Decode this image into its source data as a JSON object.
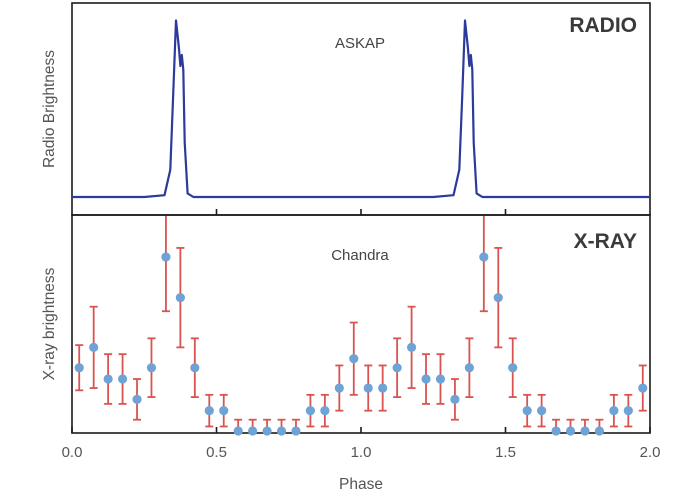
{
  "chart_data": [
    {
      "panel": "radio",
      "type": "line",
      "title": "RADIO",
      "instrument": "ASKAP",
      "ylabel": "Radio Brightness",
      "xlim": [
        0.0,
        2.0
      ],
      "ylim": [
        0,
        1
      ],
      "grid": false,
      "color": "#2b3a9b",
      "series": [
        {
          "x": [
            0.0,
            0.25,
            0.32,
            0.34,
            0.35,
            0.36,
            0.37,
            0.375,
            0.38,
            0.385,
            0.39,
            0.4,
            0.42,
            0.5,
            1.0,
            1.25,
            1.32,
            1.34,
            1.35,
            1.36,
            1.37,
            1.375,
            1.38,
            1.385,
            1.39,
            1.4,
            1.42,
            1.6,
            2.0
          ],
          "y": [
            0.0,
            0.0,
            0.01,
            0.15,
            0.55,
            0.97,
            0.82,
            0.72,
            0.78,
            0.7,
            0.3,
            0.02,
            0.0,
            0.0,
            0.0,
            0.0,
            0.01,
            0.15,
            0.55,
            0.97,
            0.82,
            0.72,
            0.78,
            0.7,
            0.3,
            0.02,
            0.0,
            0.0,
            0.0
          ]
        }
      ]
    },
    {
      "panel": "xray",
      "type": "scatter",
      "title": "X-RAY",
      "instrument": "Chandra",
      "xlabel": "Phase",
      "ylabel": "X-ray brightness",
      "xlim": [
        0.0,
        2.0
      ],
      "ylim": [
        0,
        1
      ],
      "xticks": [
        "0.0",
        "0.5",
        "1.0",
        "1.5",
        "2.0"
      ],
      "grid": false,
      "marker_color": "#6fa3d6",
      "errorbar_color": "#d9534f",
      "series": [
        {
          "x": [
            0.025,
            0.075,
            0.125,
            0.175,
            0.225,
            0.275,
            0.325,
            0.375,
            0.425,
            0.475,
            0.525,
            0.575,
            0.625,
            0.675,
            0.725,
            0.775,
            0.825,
            0.875,
            0.925,
            0.975,
            1.025,
            1.075,
            1.125,
            1.175,
            1.225,
            1.275,
            1.325,
            1.375,
            1.425,
            1.475,
            1.525,
            1.575,
            1.625,
            1.675,
            1.725,
            1.775,
            1.825,
            1.875,
            1.925,
            1.975
          ],
          "y": [
            0.28,
            0.37,
            0.23,
            0.23,
            0.14,
            0.28,
            0.77,
            0.59,
            0.28,
            0.09,
            0.09,
            0.0,
            0.0,
            0.0,
            0.0,
            0.0,
            0.09,
            0.09,
            0.19,
            0.32,
            0.19,
            0.19,
            0.28,
            0.37,
            0.23,
            0.23,
            0.14,
            0.28,
            0.77,
            0.59,
            0.28,
            0.09,
            0.09,
            0.0,
            0.0,
            0.0,
            0.0,
            0.09,
            0.09,
            0.19
          ],
          "yerr": [
            0.1,
            0.18,
            0.11,
            0.11,
            0.09,
            0.13,
            0.24,
            0.22,
            0.13,
            0.07,
            0.07,
            0.05,
            0.05,
            0.05,
            0.05,
            0.05,
            0.07,
            0.07,
            0.1,
            0.16,
            0.1,
            0.1,
            0.13,
            0.18,
            0.11,
            0.11,
            0.09,
            0.13,
            0.24,
            0.22,
            0.13,
            0.07,
            0.07,
            0.05,
            0.05,
            0.05,
            0.05,
            0.07,
            0.07,
            0.1
          ]
        }
      ]
    }
  ]
}
